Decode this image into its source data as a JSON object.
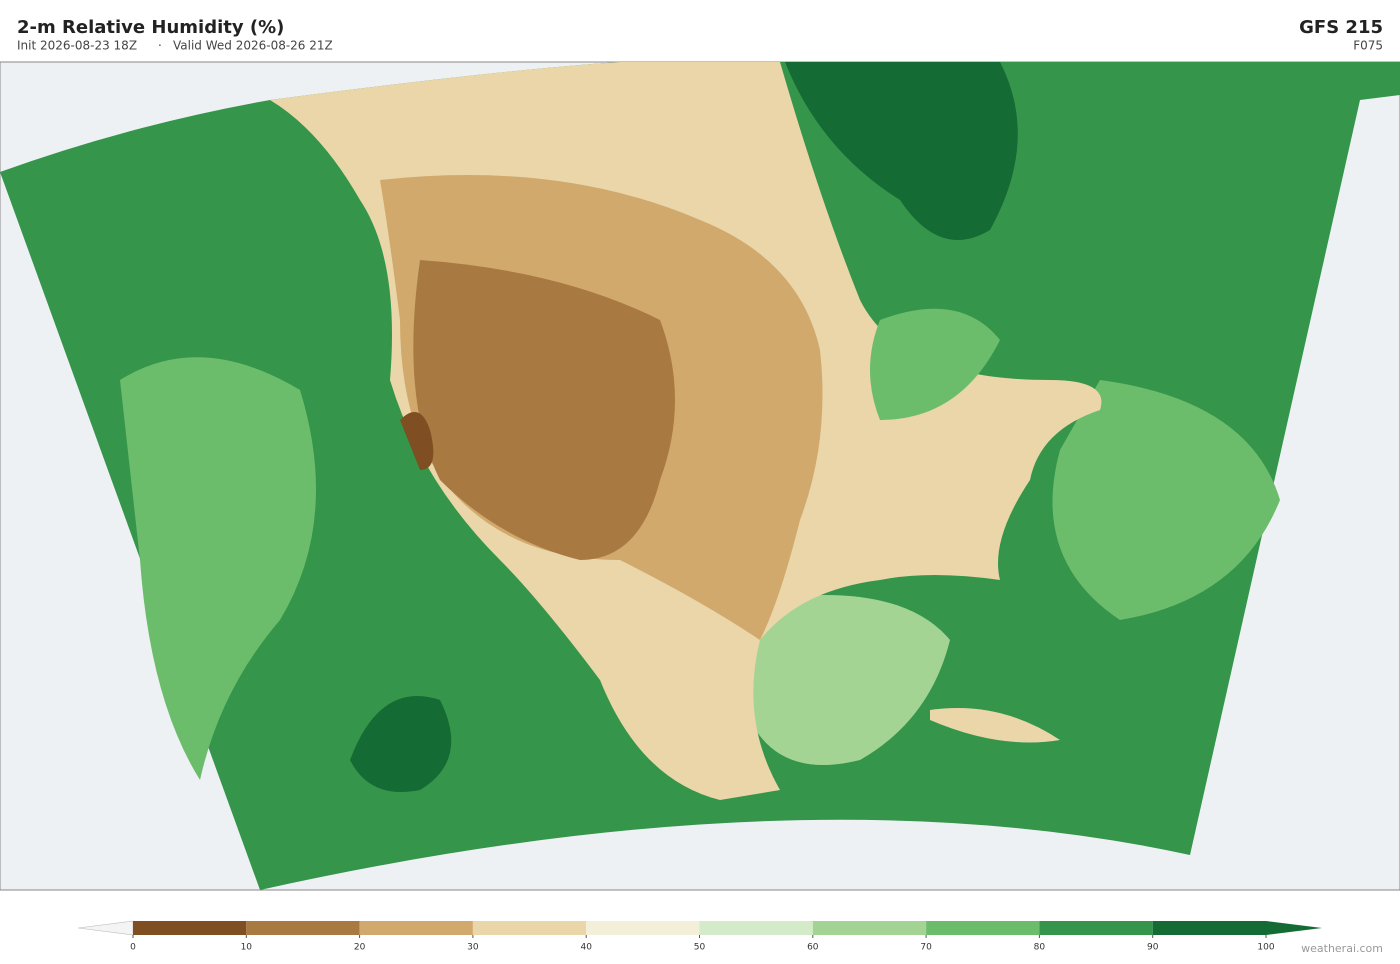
{
  "header": {
    "title": "2-m Relative Humidity  (%)",
    "init": "Init 2026-08-23 18Z",
    "valid": "Valid Wed 2026-08-26 21Z",
    "model": "GFS  215",
    "forecast_hour": "F075"
  },
  "colorbar": {
    "lim": [
      0,
      100
    ],
    "ticks": [
      0,
      10,
      20,
      30,
      40,
      50,
      60,
      70,
      80,
      90,
      100
    ],
    "colors": [
      "#7f4e22",
      "#a87a42",
      "#d1a96d",
      "#ead6a8",
      "#f3efd9",
      "#d3ebc9",
      "#a3d494",
      "#6bbd6b",
      "#35964b",
      "#146b33"
    ]
  },
  "footer": {
    "credit": "weatherai.com"
  }
}
